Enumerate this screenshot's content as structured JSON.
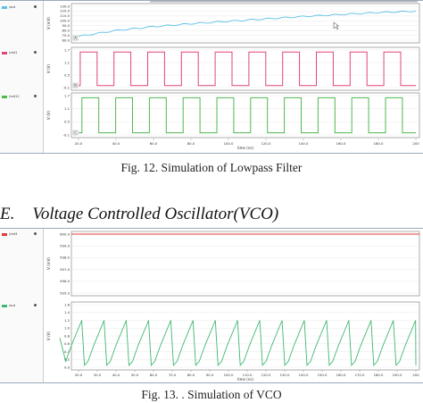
{
  "fig12": {
    "traces": [
      {
        "name": "/out",
        "color": "#5bbfe6",
        "ylabel": "V (mV)",
        "ticks": [
          "130.0",
          "120.0",
          "110.0",
          "100.0",
          "90.0",
          "80.0",
          "70.0",
          "60.0"
        ],
        "badge": "A"
      },
      {
        "name": "/net1",
        "color": "#e0457a",
        "ylabel": "V (V)",
        "ticks": [
          "1.7",
          "1.1",
          "0.5",
          "-0.1"
        ],
        "badge": "B"
      },
      {
        "name": "/net12",
        "color": "#4fb84f",
        "ylabel": "V (V)",
        "ticks": [
          "1.7",
          "1.1",
          "0.5",
          "-0.1"
        ],
        "badge": "C"
      }
    ],
    "xticks": [
      "20.0",
      "40.0",
      "60.0",
      "80.0",
      "100.0",
      "120.0",
      "140.0",
      "160.0",
      "180.0",
      "200"
    ],
    "xlabel": "time (ns)",
    "caption": "Fig. 12. Simulation of Lowpass Filter"
  },
  "section": {
    "number": "E.",
    "title": "Voltage Controlled Oscillator(VCO)"
  },
  "fig13": {
    "traces": [
      {
        "name": "/net3",
        "color": "#e03a3a",
        "ylabel": "V (mV)",
        "ticks": [
          "600.0",
          "599.0",
          "598.0",
          "597.0",
          "596.0",
          "595.0"
        ]
      },
      {
        "name": "/out",
        "color": "#3fb86f",
        "ylabel": "V (V)",
        "ticks": [
          "1.6",
          "1.4",
          "1.2",
          "1.0",
          "0.8",
          "0.6",
          "0.4",
          "0.2",
          "0.0"
        ]
      }
    ],
    "xticks": [
      "20.0",
      "30.0",
      "40.0",
      "50.0",
      "60.0",
      "70.0",
      "80.0",
      "90.0",
      "100.0",
      "110.0",
      "120.0",
      "130.0",
      "140.0",
      "150.0",
      "160.0",
      "170.0",
      "180.0",
      "190.0",
      "200"
    ],
    "xlabel": "time (ns)",
    "caption": "Fig. 13. . Simulation of VCO"
  },
  "chart_data": [
    {
      "type": "line",
      "title": "",
      "xlabel": "time (ns)",
      "x_range": [
        20,
        200
      ],
      "series": [
        {
          "name": "/out",
          "ylabel": "V (mV)",
          "ylim": [
            60,
            130
          ],
          "x": [
            20,
            40,
            60,
            80,
            100,
            120,
            140,
            160,
            180,
            200
          ],
          "values": [
            68,
            80,
            88,
            94,
            99,
            104,
            109,
            113,
            117,
            120
          ]
        },
        {
          "name": "/net1",
          "ylabel": "V (V)",
          "ylim": [
            -0.1,
            1.7
          ],
          "waveform": "square",
          "high": 1.6,
          "low": 0.0,
          "cycles": 10
        },
        {
          "name": "/net12",
          "ylabel": "V (V)",
          "ylim": [
            -0.1,
            1.7
          ],
          "waveform": "square",
          "high": 1.6,
          "low": 0.0,
          "cycles": 10
        }
      ]
    },
    {
      "type": "line",
      "title": "",
      "xlabel": "time (ns)",
      "x_range": [
        10,
        200
      ],
      "series": [
        {
          "name": "/net3",
          "ylabel": "V (mV)",
          "ylim": [
            595,
            600
          ],
          "constant": 600.0
        },
        {
          "name": "/out",
          "ylabel": "V (V)",
          "ylim": [
            0.0,
            1.6
          ],
          "waveform": "sawtooth",
          "peak": 1.2,
          "trough": 0.0,
          "cycles": 16
        }
      ]
    }
  ]
}
